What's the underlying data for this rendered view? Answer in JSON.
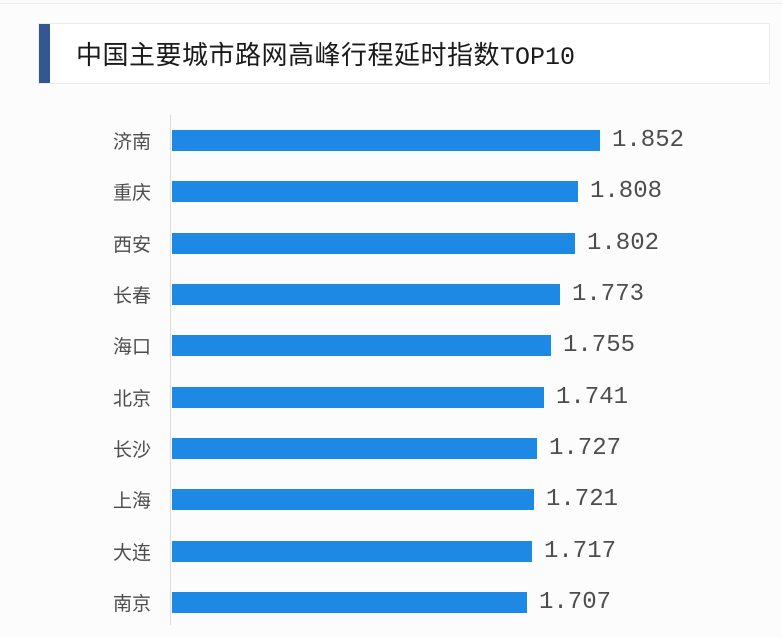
{
  "header": {
    "title_cn": "中国主要城市路网高峰行程延时指数",
    "title_suffix": "TOP10"
  },
  "colors": {
    "bar": "#1E88E5",
    "accent": "#35578F",
    "axis_line": "#DCDCDC",
    "label_text": "#4D4D4D",
    "value_text": "#4D4D4D",
    "title_text": "#1A1A1A",
    "card_border": "#EDEDED",
    "page_bg": "#FCFCFC"
  },
  "chart_data": {
    "type": "bar",
    "orientation": "horizontal",
    "title": "中国主要城市路网高峰行程延时指数TOP10",
    "categories": [
      "济南",
      "重庆",
      "西安",
      "长春",
      "海口",
      "北京",
      "长沙",
      "上海",
      "大连",
      "南京"
    ],
    "values": [
      1.852,
      1.808,
      1.802,
      1.773,
      1.755,
      1.741,
      1.727,
      1.721,
      1.717,
      1.707
    ],
    "value_labels": [
      "1.852",
      "1.808",
      "1.802",
      "1.773",
      "1.755",
      "1.741",
      "1.727",
      "1.721",
      "1.717",
      "1.707"
    ],
    "xlabel": "",
    "ylabel": "",
    "xlim": [
      1.0,
      2.0
    ],
    "grid": false,
    "legend": false,
    "sort": "descending",
    "bar_color": "#1E88E5"
  }
}
